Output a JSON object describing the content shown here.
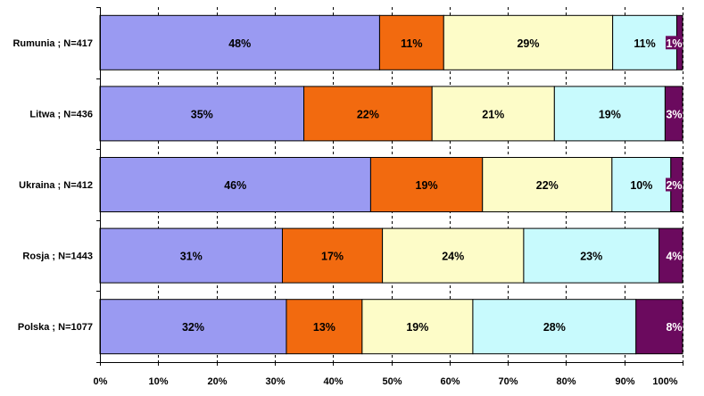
{
  "chart_data": {
    "type": "bar",
    "orientation": "horizontal",
    "stacked": "percent",
    "categories": [
      "Rumunia ; N=417",
      "Litwa ; N=436",
      "Ukraina ; N=412",
      "Rosja ; N=1443",
      "Polska ; N=1077"
    ],
    "series": [
      {
        "color": "#9a9af2",
        "values": [
          48,
          35,
          46,
          31,
          32
        ],
        "labels": [
          "48%",
          "35%",
          "46%",
          "31%",
          "32%"
        ]
      },
      {
        "color": "#f26a0f",
        "values": [
          11,
          22,
          19,
          17,
          13
        ],
        "labels": [
          "11%",
          "22%",
          "19%",
          "17%",
          "13%"
        ]
      },
      {
        "color": "#fdfcc8",
        "values": [
          29,
          21,
          22,
          24,
          19
        ],
        "labels": [
          "29%",
          "21%",
          "22%",
          "24%",
          "19%"
        ]
      },
      {
        "color": "#c8fafd",
        "values": [
          11,
          19,
          10,
          23,
          28
        ],
        "labels": [
          "11%",
          "19%",
          "10%",
          "23%",
          "28%"
        ]
      },
      {
        "color": "#6b0a5e",
        "values": [
          1,
          3,
          2,
          4,
          8
        ],
        "labels": [
          "1%",
          "3%",
          "2%",
          "4%",
          "8%"
        ]
      }
    ],
    "x_ticks": [
      "0%",
      "10%",
      "20%",
      "30%",
      "40%",
      "50%",
      "60%",
      "70%",
      "80%",
      "90%",
      "100%"
    ],
    "xlim": [
      0,
      100
    ],
    "grid": "vertical dashed",
    "legend": "none",
    "title": "",
    "xlabel": "",
    "ylabel": ""
  }
}
